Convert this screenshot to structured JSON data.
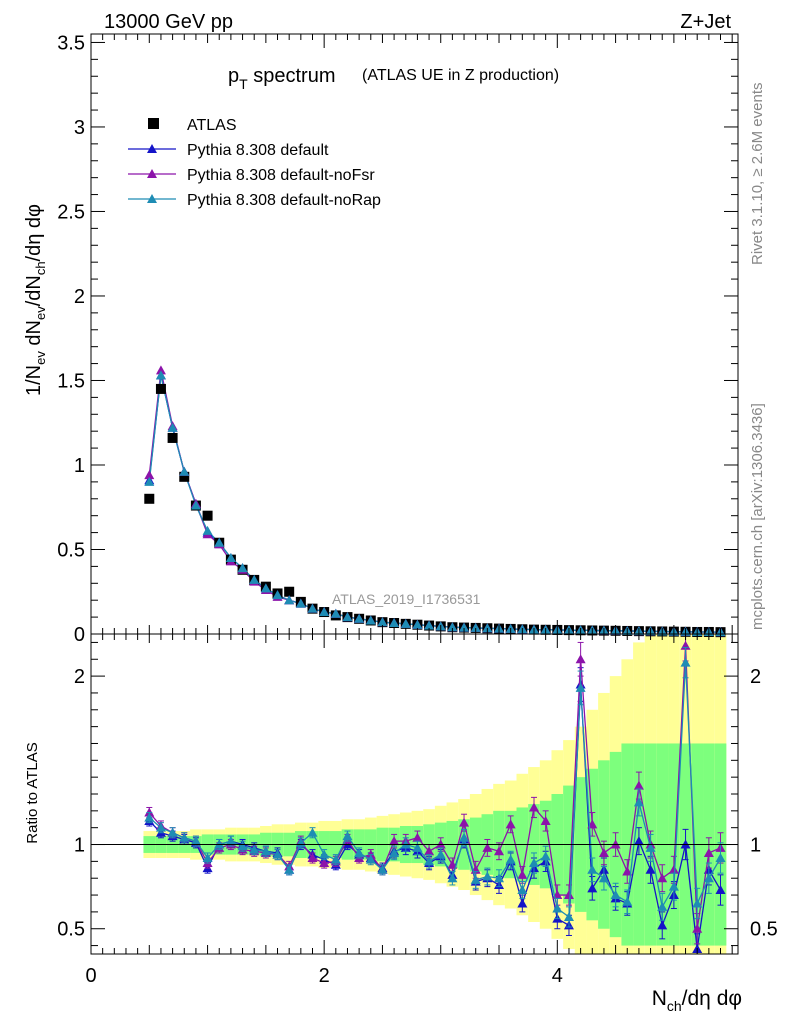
{
  "header": {
    "left": "13000 GeV pp",
    "right": "Z+Jet"
  },
  "side_labels": {
    "rivet": "Rivet 3.1.10, ≥ 2.6M events",
    "mcplots": "mcplots.cern.ch [arXiv:1306.3436]"
  },
  "colors": {
    "ATLAS": "#000000",
    "default": "#1414c8",
    "noFsr": "#8c14aa",
    "noRap": "#1e8cb4",
    "band_inner": "#7dff7d",
    "band_outer": "#ffff96"
  },
  "chart_data": [
    {
      "type": "scatter",
      "panel": "main",
      "title": "p_T spectrum",
      "title_main": "p",
      "title_sub": "T",
      "title_rest": " spectrum",
      "title_note": "(ATLAS UE in Z production)",
      "xlabel": "N_ch/dη dφ",
      "xlabel_main": "N",
      "xlabel_sub": "ch",
      "xlabel_rest": "/dη dφ",
      "ylabel": "1/N_ev dN_ev/dN_ch/dη dφ",
      "ylabel_parts": [
        "1/N",
        "ev",
        " dN",
        "ev",
        "/dN",
        "ch",
        "/dη dφ"
      ],
      "xlim": [
        0,
        5.55
      ],
      "ylim": [
        0,
        3.55
      ],
      "yticks": [
        0,
        0.5,
        1,
        1.5,
        2,
        2.5,
        3,
        3.5
      ],
      "ytick_labels": [
        "0",
        "0.5",
        "1",
        "1.5",
        "2",
        "2.5",
        "3",
        "3.5"
      ],
      "watermark": "ATLAS_2019_I1736531",
      "legend_position": "top-left",
      "x": [
        0.5,
        0.6,
        0.7,
        0.8,
        0.9,
        1.0,
        1.1,
        1.2,
        1.3,
        1.4,
        1.5,
        1.6,
        1.7,
        1.8,
        1.9,
        2.0,
        2.1,
        2.2,
        2.3,
        2.4,
        2.5,
        2.6,
        2.7,
        2.8,
        2.9,
        3.0,
        3.1,
        3.2,
        3.3,
        3.4,
        3.5,
        3.6,
        3.7,
        3.8,
        3.9,
        4.0,
        4.1,
        4.2,
        4.3,
        4.4,
        4.5,
        4.6,
        4.7,
        4.8,
        4.9,
        5.0,
        5.1,
        5.2,
        5.3,
        5.4
      ],
      "series": [
        {
          "name": "ATLAS",
          "marker": "square",
          "values": [
            0.8,
            1.45,
            1.16,
            0.93,
            0.76,
            0.7,
            0.54,
            0.44,
            0.38,
            0.32,
            0.28,
            0.24,
            0.25,
            0.19,
            0.15,
            0.13,
            0.11,
            0.1,
            0.09,
            0.08,
            0.07,
            0.065,
            0.06,
            0.055,
            0.05,
            0.045,
            0.04,
            0.038,
            0.036,
            0.034,
            0.032,
            0.03,
            0.028,
            0.026,
            0.025,
            0.024,
            0.023,
            0.022,
            0.021,
            0.02,
            0.019,
            0.018,
            0.017,
            0.016,
            0.015,
            0.014,
            0.013,
            0.012,
            0.012,
            0.011
          ]
        },
        {
          "name": "Pythia 8.308 default",
          "marker": "triangle",
          "values": [
            0.91,
            1.53,
            1.22,
            0.96,
            0.77,
            0.6,
            0.54,
            0.45,
            0.39,
            0.32,
            0.27,
            0.23,
            0.2,
            0.18,
            0.15,
            0.13,
            0.12,
            0.1,
            0.09,
            0.08,
            0.07,
            0.065,
            0.06,
            0.055,
            0.05,
            0.045,
            0.04,
            0.038,
            0.036,
            0.034,
            0.032,
            0.03,
            0.028,
            0.026,
            0.025,
            0.024,
            0.023,
            0.022,
            0.021,
            0.02,
            0.019,
            0.018,
            0.017,
            0.016,
            0.015,
            0.014,
            0.013,
            0.012,
            0.012,
            0.011
          ]
        },
        {
          "name": "Pythia 8.308 default-noFsr",
          "marker": "triangle",
          "values": [
            0.94,
            1.56,
            1.23,
            0.96,
            0.77,
            0.59,
            0.53,
            0.43,
            0.38,
            0.31,
            0.26,
            0.22,
            0.2,
            0.18,
            0.15,
            0.13,
            0.12,
            0.1,
            0.09,
            0.08,
            0.07,
            0.065,
            0.06,
            0.055,
            0.05,
            0.045,
            0.04,
            0.038,
            0.036,
            0.034,
            0.032,
            0.03,
            0.028,
            0.026,
            0.025,
            0.024,
            0.023,
            0.022,
            0.021,
            0.02,
            0.019,
            0.018,
            0.017,
            0.016,
            0.015,
            0.014,
            0.013,
            0.012,
            0.012,
            0.011
          ]
        },
        {
          "name": "Pythia 8.308 default-noRap",
          "marker": "triangle",
          "values": [
            0.9,
            1.53,
            1.22,
            0.96,
            0.76,
            0.61,
            0.54,
            0.45,
            0.39,
            0.32,
            0.27,
            0.23,
            0.2,
            0.18,
            0.15,
            0.13,
            0.12,
            0.1,
            0.09,
            0.08,
            0.07,
            0.065,
            0.06,
            0.055,
            0.05,
            0.045,
            0.04,
            0.038,
            0.036,
            0.034,
            0.032,
            0.03,
            0.028,
            0.026,
            0.025,
            0.024,
            0.023,
            0.022,
            0.021,
            0.02,
            0.019,
            0.018,
            0.017,
            0.016,
            0.015,
            0.014,
            0.013,
            0.012,
            0.012,
            0.011
          ]
        }
      ]
    },
    {
      "type": "scatter",
      "panel": "ratio",
      "ylabel": "Ratio to ATLAS",
      "xlabel": "N_ch/dη dφ",
      "xlim": [
        0,
        5.55
      ],
      "ylim": [
        0.35,
        2.25
      ],
      "yticks": [
        0.5,
        1,
        2
      ],
      "ytick_labels": [
        "0.5",
        "1",
        "2"
      ],
      "xticks": [
        0,
        2,
        4
      ],
      "xtick_labels": [
        "0",
        "2",
        "4"
      ],
      "reference_line": 1,
      "x": [
        0.5,
        0.6,
        0.7,
        0.8,
        0.9,
        1.0,
        1.1,
        1.2,
        1.3,
        1.4,
        1.5,
        1.6,
        1.7,
        1.8,
        1.9,
        2.0,
        2.1,
        2.2,
        2.3,
        2.4,
        2.5,
        2.6,
        2.7,
        2.8,
        2.9,
        3.0,
        3.1,
        3.2,
        3.3,
        3.4,
        3.5,
        3.6,
        3.7,
        3.8,
        3.9,
        4.0,
        4.1,
        4.2,
        4.3,
        4.4,
        4.5,
        4.6,
        4.7,
        4.8,
        4.9,
        5.0,
        5.1,
        5.2,
        5.3,
        5.4
      ],
      "bands": {
        "inner_half_width": [
          0.05,
          0.05,
          0.05,
          0.05,
          0.05,
          0.06,
          0.06,
          0.06,
          0.06,
          0.06,
          0.07,
          0.07,
          0.07,
          0.08,
          0.08,
          0.08,
          0.08,
          0.09,
          0.09,
          0.09,
          0.1,
          0.1,
          0.11,
          0.11,
          0.12,
          0.13,
          0.14,
          0.15,
          0.16,
          0.18,
          0.2,
          0.2,
          0.22,
          0.24,
          0.26,
          0.3,
          0.35,
          0.4,
          0.45,
          0.5,
          0.55,
          0.6,
          0.6,
          0.6,
          0.6,
          0.6,
          0.6,
          0.6,
          0.6,
          0.6
        ],
        "outer_half_width": [
          0.08,
          0.08,
          0.08,
          0.08,
          0.09,
          0.09,
          0.09,
          0.1,
          0.1,
          0.1,
          0.11,
          0.12,
          0.12,
          0.13,
          0.13,
          0.14,
          0.14,
          0.15,
          0.15,
          0.16,
          0.17,
          0.18,
          0.19,
          0.2,
          0.21,
          0.23,
          0.25,
          0.27,
          0.3,
          0.33,
          0.36,
          0.38,
          0.42,
          0.46,
          0.5,
          0.56,
          0.62,
          0.7,
          0.8,
          0.9,
          1.0,
          1.1,
          1.2,
          1.25,
          1.25,
          1.25,
          1.25,
          1.25,
          1.25,
          1.25
        ]
      },
      "series": [
        {
          "name": "Pythia 8.308 default",
          "values": [
            1.14,
            1.07,
            1.05,
            1.03,
            1.01,
            0.86,
            1.0,
            1.02,
            1.0,
            0.98,
            0.96,
            0.95,
            0.85,
            1.0,
            0.94,
            0.91,
            0.88,
            1.0,
            0.94,
            0.92,
            0.86,
            0.96,
            0.98,
            0.96,
            0.89,
            0.93,
            0.82,
            1.03,
            0.78,
            0.8,
            0.76,
            0.9,
            0.65,
            0.86,
            0.9,
            0.56,
            0.52,
            1.95,
            0.74,
            0.85,
            0.68,
            0.65,
            1.02,
            0.85,
            0.52,
            0.7,
            1.0,
            0.38,
            0.85,
            0.73
          ],
          "errors": [
            0.03,
            0.03,
            0.03,
            0.03,
            0.03,
            0.03,
            0.03,
            0.03,
            0.03,
            0.03,
            0.03,
            0.03,
            0.03,
            0.03,
            0.03,
            0.03,
            0.03,
            0.03,
            0.03,
            0.03,
            0.03,
            0.04,
            0.04,
            0.04,
            0.04,
            0.04,
            0.04,
            0.05,
            0.05,
            0.05,
            0.05,
            0.05,
            0.05,
            0.06,
            0.06,
            0.06,
            0.06,
            0.1,
            0.07,
            0.07,
            0.07,
            0.07,
            0.08,
            0.08,
            0.08,
            0.08,
            0.09,
            0.09,
            0.09,
            0.09
          ]
        },
        {
          "name": "Pythia 8.308 default-noFsr",
          "values": [
            1.19,
            1.11,
            1.07,
            1.04,
            1.02,
            0.89,
            0.98,
            1.0,
            0.97,
            0.96,
            0.95,
            0.94,
            0.87,
            1.02,
            0.92,
            0.89,
            0.9,
            1.03,
            0.92,
            0.94,
            0.85,
            1.02,
            1.02,
            1.04,
            0.96,
            1.0,
            0.88,
            1.13,
            0.85,
            0.98,
            0.96,
            1.12,
            0.82,
            1.22,
            1.14,
            0.7,
            0.7,
            2.1,
            1.12,
            0.95,
            1.0,
            0.84,
            1.35,
            1.0,
            0.8,
            0.85,
            2.18,
            0.5,
            0.95,
            0.98
          ],
          "errors": [
            0.03,
            0.03,
            0.03,
            0.03,
            0.03,
            0.03,
            0.03,
            0.03,
            0.03,
            0.03,
            0.03,
            0.03,
            0.03,
            0.03,
            0.03,
            0.03,
            0.03,
            0.03,
            0.03,
            0.03,
            0.03,
            0.04,
            0.04,
            0.04,
            0.04,
            0.04,
            0.04,
            0.05,
            0.05,
            0.05,
            0.05,
            0.05,
            0.05,
            0.06,
            0.06,
            0.06,
            0.06,
            0.1,
            0.07,
            0.07,
            0.07,
            0.07,
            0.08,
            0.08,
            0.08,
            0.08,
            0.09,
            0.09,
            0.09,
            0.09
          ]
        },
        {
          "name": "Pythia 8.308 default-noRap",
          "values": [
            1.16,
            1.1,
            1.07,
            1.04,
            1.02,
            0.92,
            1.0,
            1.02,
            0.99,
            0.97,
            0.96,
            0.94,
            0.85,
            1.01,
            1.07,
            0.94,
            0.91,
            1.05,
            0.95,
            0.91,
            0.85,
            0.95,
            1.0,
            0.98,
            0.9,
            0.94,
            0.8,
            1.04,
            0.79,
            0.81,
            0.8,
            0.91,
            0.73,
            0.89,
            0.93,
            0.62,
            0.57,
            1.93,
            0.85,
            0.8,
            0.7,
            0.66,
            1.25,
            0.98,
            0.63,
            0.75,
            2.08,
            0.65,
            0.8,
            0.92
          ],
          "errors": [
            0.03,
            0.03,
            0.03,
            0.03,
            0.03,
            0.03,
            0.03,
            0.03,
            0.03,
            0.03,
            0.03,
            0.03,
            0.03,
            0.03,
            0.03,
            0.03,
            0.03,
            0.03,
            0.03,
            0.03,
            0.03,
            0.04,
            0.04,
            0.04,
            0.04,
            0.04,
            0.04,
            0.05,
            0.05,
            0.05,
            0.05,
            0.05,
            0.05,
            0.06,
            0.06,
            0.06,
            0.06,
            0.1,
            0.07,
            0.07,
            0.07,
            0.07,
            0.08,
            0.08,
            0.08,
            0.08,
            0.09,
            0.09,
            0.09,
            0.09
          ]
        }
      ]
    }
  ]
}
